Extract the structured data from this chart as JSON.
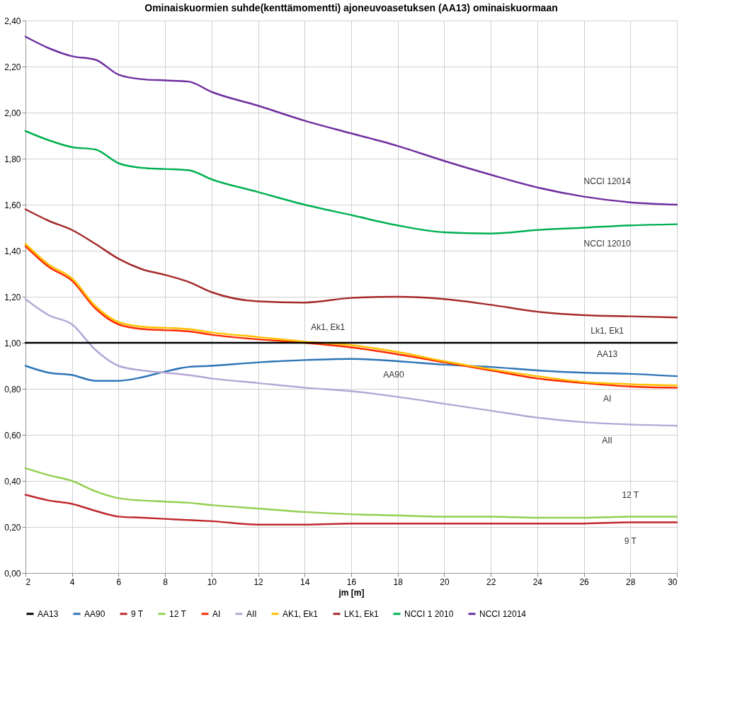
{
  "chart_data": {
    "type": "line",
    "title": "Ominaiskuormien suhde(kenttämomentti) ajoneuvoasetuksen (AA13) ominaiskuormaan",
    "xlabel": "jm [m]",
    "x": [
      2,
      3,
      4,
      5,
      6,
      7,
      8,
      9,
      10,
      12,
      14,
      16,
      18,
      20,
      22,
      24,
      26,
      28,
      30
    ],
    "series": [
      {
        "name": "AA13",
        "color": "#000000",
        "values": [
          1.0,
          1.0,
          1.0,
          1.0,
          1.0,
          1.0,
          1.0,
          1.0,
          1.0,
          1.0,
          1.0,
          1.0,
          1.0,
          1.0,
          1.0,
          1.0,
          1.0,
          1.0,
          1.0
        ]
      },
      {
        "name": "AA90",
        "color": "#2e75b6",
        "values": [
          0.9,
          0.87,
          0.86,
          0.835,
          0.835,
          0.85,
          0.875,
          0.895,
          0.9,
          0.915,
          0.925,
          0.93,
          0.92,
          0.905,
          0.895,
          0.88,
          0.87,
          0.865,
          0.855
        ]
      },
      {
        "name": "9 T",
        "color": "#c0282d",
        "values": [
          0.34,
          0.315,
          0.3,
          0.27,
          0.245,
          0.24,
          0.235,
          0.23,
          0.225,
          0.21,
          0.21,
          0.215,
          0.215,
          0.215,
          0.215,
          0.215,
          0.215,
          0.22,
          0.22
        ]
      },
      {
        "name": "12 T",
        "color": "#92d050",
        "values": [
          0.455,
          0.425,
          0.4,
          0.355,
          0.325,
          0.315,
          0.31,
          0.305,
          0.295,
          0.28,
          0.265,
          0.255,
          0.25,
          0.245,
          0.245,
          0.24,
          0.24,
          0.245,
          0.245
        ]
      },
      {
        "name": "AI",
        "color": "#ff2a00",
        "values": [
          1.42,
          1.33,
          1.27,
          1.15,
          1.08,
          1.06,
          1.055,
          1.05,
          1.035,
          1.015,
          1.0,
          0.98,
          0.95,
          0.915,
          0.88,
          0.845,
          0.825,
          0.81,
          0.805
        ]
      },
      {
        "name": "AII",
        "color": "#b4a7d6",
        "values": [
          1.19,
          1.12,
          1.08,
          0.97,
          0.9,
          0.88,
          0.87,
          0.86,
          0.845,
          0.825,
          0.805,
          0.79,
          0.765,
          0.735,
          0.705,
          0.675,
          0.655,
          0.645,
          0.64
        ]
      },
      {
        "name": "AK1, Ek1",
        "color": "#ffc000",
        "values": [
          1.43,
          1.34,
          1.28,
          1.16,
          1.09,
          1.07,
          1.065,
          1.06,
          1.045,
          1.025,
          1.005,
          0.99,
          0.96,
          0.92,
          0.885,
          0.855,
          0.83,
          0.82,
          0.815
        ]
      },
      {
        "name": "LK1, Ek1",
        "color": "#a52a2a",
        "values": [
          1.58,
          1.53,
          1.49,
          1.43,
          1.365,
          1.32,
          1.295,
          1.265,
          1.22,
          1.18,
          1.175,
          1.195,
          1.2,
          1.19,
          1.165,
          1.135,
          1.12,
          1.115,
          1.11
        ]
      },
      {
        "name": "NCCI 1 2010",
        "color": "#00b050",
        "values": [
          1.92,
          1.88,
          1.85,
          1.84,
          1.78,
          1.76,
          1.755,
          1.75,
          1.71,
          1.655,
          1.6,
          1.555,
          1.51,
          1.48,
          1.475,
          1.49,
          1.5,
          1.51,
          1.515
        ]
      },
      {
        "name": "NCCI 12014",
        "color": "#7030a0",
        "values": [
          2.33,
          2.28,
          2.245,
          2.23,
          2.165,
          2.145,
          2.14,
          2.135,
          2.09,
          2.03,
          1.965,
          1.91,
          1.855,
          1.79,
          1.73,
          1.675,
          1.635,
          1.61,
          1.6
        ]
      }
    ],
    "xlim": [
      2,
      30
    ],
    "xticks": [
      2,
      4,
      6,
      8,
      10,
      12,
      14,
      16,
      18,
      20,
      22,
      24,
      26,
      28,
      30
    ],
    "ylim": [
      0,
      2.4
    ],
    "yticks": [
      {
        "value": 0,
        "label": "0,00"
      },
      {
        "value": 0.2,
        "label": "0,20"
      },
      {
        "value": 0.4,
        "label": "0,40"
      },
      {
        "value": 0.6,
        "label": "0,60"
      },
      {
        "value": 0.8,
        "label": "0,80"
      },
      {
        "value": 1.0,
        "label": "1,00"
      },
      {
        "value": 1.2,
        "label": "1,20"
      },
      {
        "value": 1.4,
        "label": "1,40"
      },
      {
        "value": 1.6,
        "label": "1,60"
      },
      {
        "value": 1.8,
        "label": "1,80"
      },
      {
        "value": 2.0,
        "label": "2,00"
      },
      {
        "value": 2.2,
        "label": "2,20"
      },
      {
        "value": 2.4,
        "label": "2,40"
      }
    ],
    "annotations": [
      "NCCI 12014",
      "NCCI 12010",
      "Lk1, Ek1",
      "Ak1, Ek1",
      "AA13",
      "AA90",
      "AI",
      "AII",
      "12 T",
      "9 T"
    ],
    "grid": true,
    "legend": "bottom",
    "marker": "none",
    "line_style": "solid"
  }
}
